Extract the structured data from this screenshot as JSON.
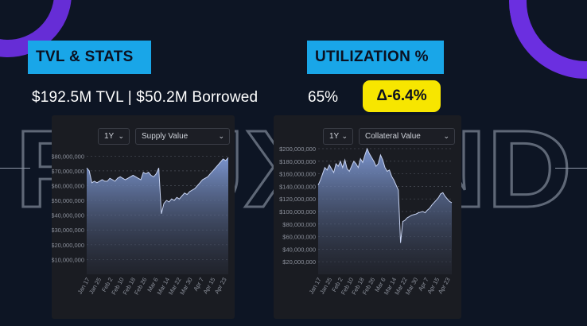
{
  "header": {
    "tvl_tag": "TVL & STATS",
    "util_tag": "UTILIZATION %",
    "tvl_line": "$192.5M TVL | $50.2M Borrowed",
    "util_value": "65%",
    "delta": "Δ-6.4%"
  },
  "watermark": {
    "text": "FLUXEND"
  },
  "colors": {
    "accent_purple": "#6b2fe0",
    "tag_blue": "#19a6e8",
    "delta_yellow": "#f7e600",
    "background": "#0d1524",
    "panel": "#1a1c22"
  },
  "panels": [
    {
      "range_selector": "1Y",
      "metric_selector": "Supply Value",
      "chevron_icon": "chevron-down-icon"
    },
    {
      "range_selector": "1Y",
      "metric_selector": "Collateral Value",
      "chevron_icon": "chevron-down-icon"
    }
  ],
  "chart_data": [
    {
      "type": "area",
      "series": [
        {
          "values": [
            72,
            70,
            62,
            63,
            62,
            63,
            64,
            63,
            63,
            65,
            64,
            63,
            65,
            66,
            65,
            64,
            65,
            66,
            67,
            66,
            65,
            64,
            69,
            68,
            69,
            67,
            66,
            68,
            72,
            41,
            48,
            50,
            49,
            51,
            50,
            52,
            51,
            53,
            55,
            54,
            56,
            57,
            58,
            60,
            62,
            64,
            65,
            66,
            68,
            70,
            72,
            74,
            76,
            78,
            77,
            79
          ]
        }
      ],
      "x_tick_labels": [
        "Jan 17",
        "Jan 25",
        "Feb 2",
        "Feb 10",
        "Feb 18",
        "Feb 26",
        "Mar 6",
        "Mar 14",
        "Mar 22",
        "Mar 30",
        "Apr 7",
        "Apr 15",
        "Apr 23"
      ],
      "y_tick_labels": [
        "$10,000,000",
        "$20,000,000",
        "$30,000,000",
        "$40,000,000",
        "$50,000,000",
        "$60,000,000",
        "$70,000,000",
        "$80,000,000"
      ],
      "ylim": [
        0,
        85
      ],
      "grid": true
    },
    {
      "type": "area",
      "series": [
        {
          "values": [
            142,
            150,
            160,
            170,
            166,
            174,
            168,
            162,
            176,
            172,
            180,
            170,
            182,
            168,
            164,
            172,
            180,
            176,
            170,
            184,
            178,
            190,
            200,
            192,
            186,
            180,
            172,
            176,
            190,
            182,
            170,
            164,
            166,
            156,
            150,
            142,
            134,
            50,
            84,
            86,
            90,
            92,
            94,
            95,
            96,
            98,
            99,
            100,
            98,
            102,
            105,
            110,
            114,
            118,
            122,
            128,
            130,
            124,
            120,
            116,
            114
          ]
        }
      ],
      "x_tick_labels": [
        "Jan 17",
        "Jan 25",
        "Feb 2",
        "Feb 10",
        "Feb 18",
        "Feb 26",
        "Mar 6",
        "Mar 14",
        "Mar 22",
        "Mar 30",
        "Apr 7",
        "Apr 15",
        "Apr 23"
      ],
      "y_tick_labels": [
        "$20,000,000",
        "$40,000,000",
        "$60,000,000",
        "$80,000,000",
        "$100,000,000",
        "$120,000,000",
        "$140,000,000",
        "$160,000,000",
        "$180,000,000",
        "$200,000,000"
      ],
      "ylim": [
        0,
        205
      ],
      "grid": true
    }
  ]
}
